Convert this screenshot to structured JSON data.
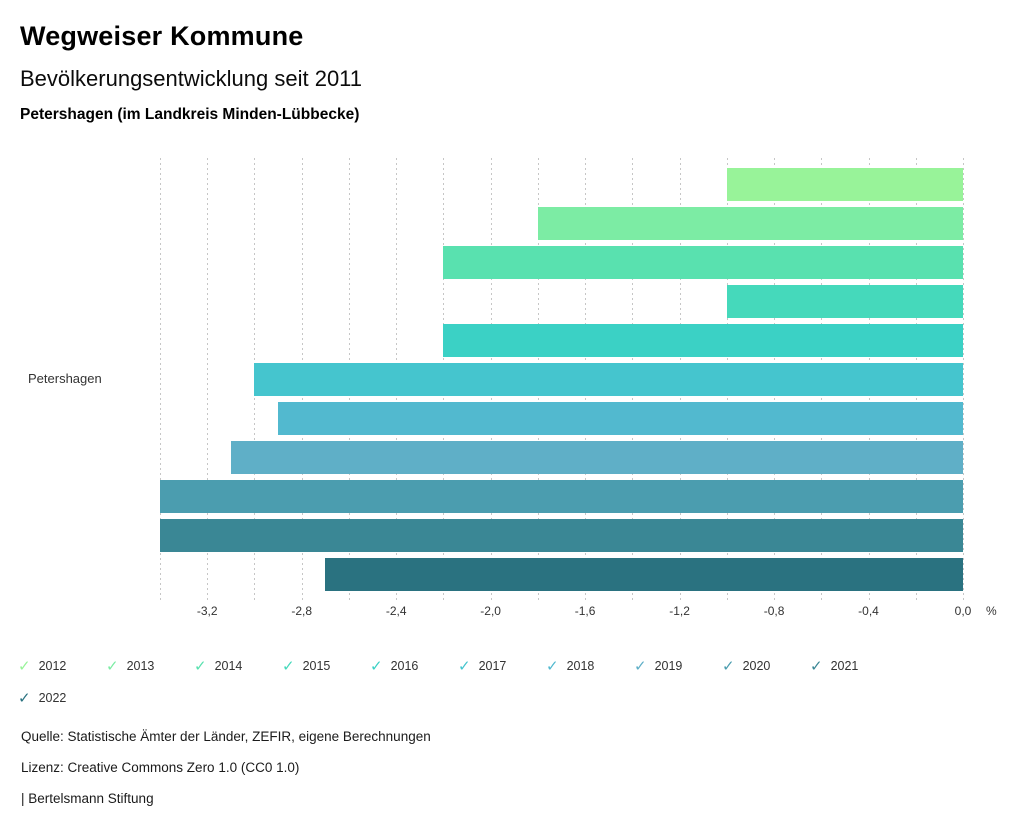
{
  "header": {
    "title": "Wegweiser Kommune",
    "subtitle": "Bevölkerungsentwicklung seit 2011",
    "region": "Petershagen (im Landkreis Minden-Lübbecke)"
  },
  "chart_data": {
    "type": "bar",
    "orientation": "horizontal",
    "title": "Bevölkerungsentwicklung seit 2011",
    "group_label": "Petershagen",
    "unit_label": "%",
    "xlim": [
      -3.4,
      0
    ],
    "grid": true,
    "grid_step": 0.2,
    "tick_labels": [
      "-3,2",
      "-2,8",
      "-2,4",
      "-2,0",
      "-1,6",
      "-1,2",
      "-0,8",
      "-0,4",
      "0,0"
    ],
    "tick_values": [
      -3.2,
      -2.8,
      -2.4,
      -2.0,
      -1.6,
      -1.2,
      -0.8,
      -0.4,
      0.0
    ],
    "legend_position": "bottom",
    "series": [
      {
        "name": "2012",
        "value": -1.0,
        "color": "#98F399"
      },
      {
        "name": "2013",
        "value": -1.8,
        "color": "#7CECA4"
      },
      {
        "name": "2014",
        "value": -2.2,
        "color": "#59E1AF"
      },
      {
        "name": "2015",
        "value": -1.0,
        "color": "#45D9BB"
      },
      {
        "name": "2016",
        "value": -2.2,
        "color": "#3BD1C5"
      },
      {
        "name": "2017",
        "value": -3.0,
        "color": "#45C5CE"
      },
      {
        "name": "2018",
        "value": -2.9,
        "color": "#52B9CF"
      },
      {
        "name": "2019",
        "value": -3.1,
        "color": "#5FAFC7"
      },
      {
        "name": "2020",
        "value": -3.4,
        "color": "#4B9DAF"
      },
      {
        "name": "2021",
        "value": -3.4,
        "color": "#3A8795"
      },
      {
        "name": "2022",
        "value": -2.7,
        "color": "#2A7280"
      }
    ],
    "bar_layout": {
      "first_top": 10,
      "pitch": 39,
      "height": 33
    }
  },
  "legend": {
    "checkmark_glyph": "✓"
  },
  "footer": {
    "source": "Quelle: Statistische Ämter der Länder, ZEFIR, eigene Berechnungen",
    "license": "Lizenz: Creative Commons Zero 1.0 (CC0 1.0)",
    "attribution": "| Bertelsmann Stiftung"
  }
}
